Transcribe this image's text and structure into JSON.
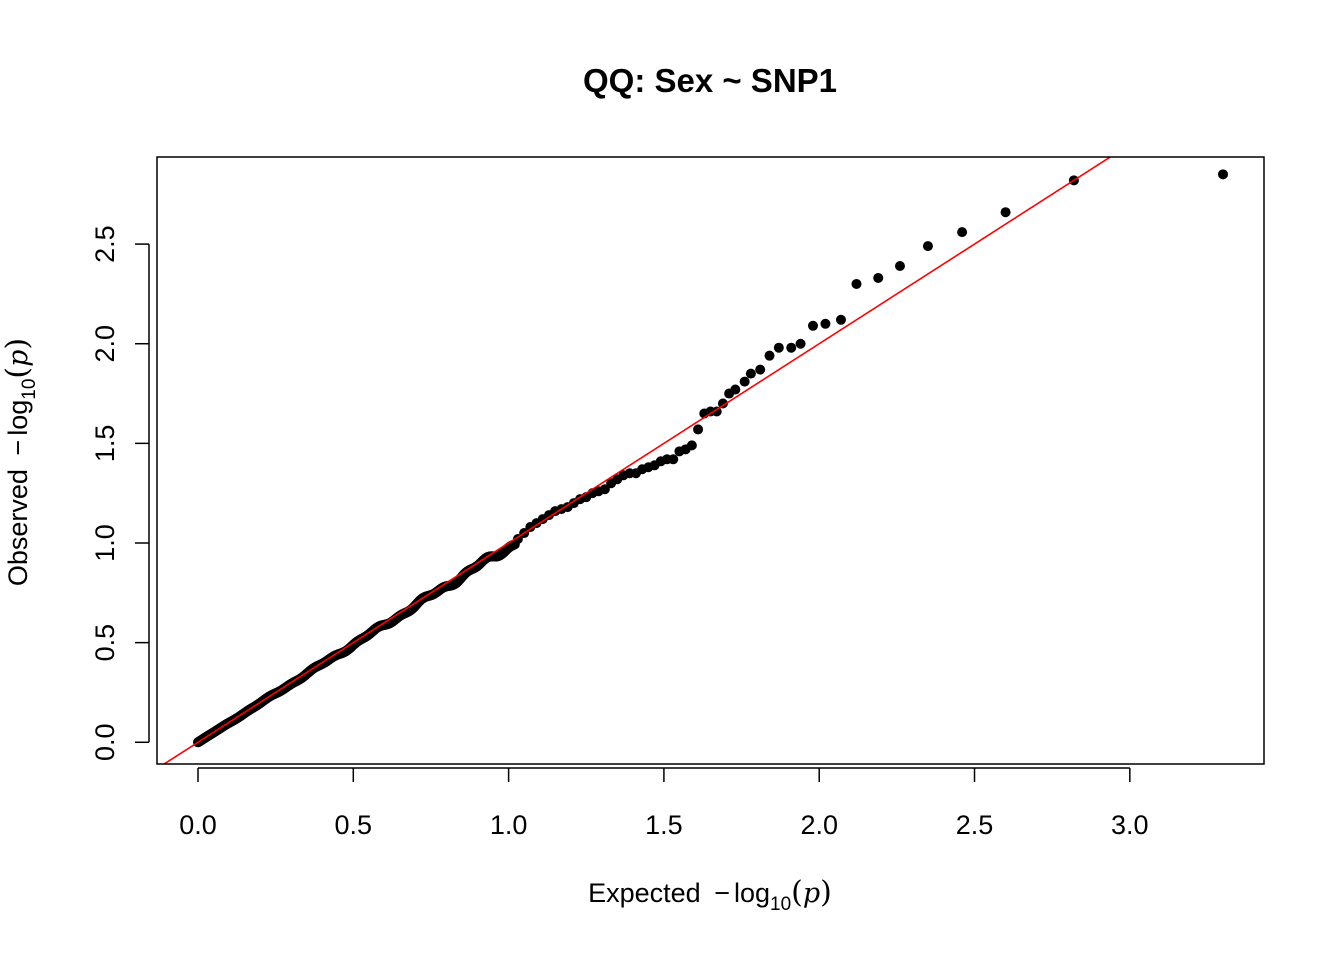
{
  "chart_data": {
    "type": "scatter",
    "title": "QQ: Sex ~ SNP1",
    "xlabel": {
      "prefix": "Expected ",
      "minus": "−",
      "log": "log",
      "sub": "10",
      "open": "(",
      "var": "p",
      "close": ")"
    },
    "ylabel": {
      "prefix": "Observed ",
      "minus": "−",
      "log": "log",
      "sub": "10",
      "open": "(",
      "var": "p",
      "close": ")"
    },
    "xlim": [
      -0.132,
      3.432
    ],
    "ylim": [
      -0.109,
      2.937
    ],
    "xticks": [
      0.0,
      0.5,
      1.0,
      1.5,
      2.0,
      2.5,
      3.0
    ],
    "xtick_labels": [
      "0.0",
      "0.5",
      "1.0",
      "1.5",
      "2.0",
      "2.5",
      "3.0"
    ],
    "yticks": [
      0.0,
      0.5,
      1.0,
      1.5,
      2.0,
      2.5
    ],
    "ytick_labels": [
      "0.0",
      "0.5",
      "1.0",
      "1.5",
      "2.0",
      "2.5"
    ],
    "reference_line": {
      "slope": 1,
      "intercept": 0,
      "color": "#ff0000"
    },
    "point_color": "#000000",
    "grid": false,
    "legend": "none",
    "points_upper_tail": [
      [
        3.3,
        2.85
      ],
      [
        2.82,
        2.82
      ],
      [
        2.6,
        2.66
      ],
      [
        2.46,
        2.56
      ],
      [
        2.35,
        2.49
      ],
      [
        2.26,
        2.39
      ],
      [
        2.19,
        2.33
      ],
      [
        2.12,
        2.3
      ],
      [
        2.07,
        2.12
      ],
      [
        2.02,
        2.1
      ],
      [
        1.98,
        2.09
      ],
      [
        1.94,
        2.0
      ],
      [
        1.91,
        1.98
      ],
      [
        1.87,
        1.98
      ],
      [
        1.84,
        1.94
      ],
      [
        1.81,
        1.87
      ],
      [
        1.78,
        1.85
      ],
      [
        1.76,
        1.81
      ],
      [
        1.73,
        1.77
      ],
      [
        1.71,
        1.75
      ],
      [
        1.69,
        1.7
      ],
      [
        1.67,
        1.66
      ],
      [
        1.65,
        1.66
      ],
      [
        1.63,
        1.65
      ],
      [
        1.61,
        1.57
      ],
      [
        1.59,
        1.49
      ],
      [
        1.57,
        1.47
      ],
      [
        1.55,
        1.46
      ],
      [
        1.53,
        1.42
      ],
      [
        1.51,
        1.42
      ],
      [
        1.49,
        1.41
      ],
      [
        1.47,
        1.39
      ],
      [
        1.45,
        1.38
      ],
      [
        1.43,
        1.37
      ],
      [
        1.41,
        1.35
      ],
      [
        1.39,
        1.35
      ],
      [
        1.37,
        1.34
      ],
      [
        1.35,
        1.32
      ],
      [
        1.33,
        1.3
      ],
      [
        1.31,
        1.27
      ],
      [
        1.29,
        1.26
      ],
      [
        1.27,
        1.25
      ],
      [
        1.25,
        1.23
      ],
      [
        1.23,
        1.22
      ],
      [
        1.21,
        1.2
      ],
      [
        1.19,
        1.18
      ],
      [
        1.17,
        1.17
      ],
      [
        1.15,
        1.16
      ],
      [
        1.13,
        1.14
      ],
      [
        1.11,
        1.12
      ],
      [
        1.09,
        1.1
      ],
      [
        1.07,
        1.08
      ],
      [
        1.05,
        1.05
      ],
      [
        1.03,
        1.02
      ]
    ],
    "bulk_segments": [
      {
        "x_from": 0.0,
        "x_to": 1.02,
        "y_from": 0.0,
        "y_to": 1.0,
        "count": 880
      }
    ]
  }
}
